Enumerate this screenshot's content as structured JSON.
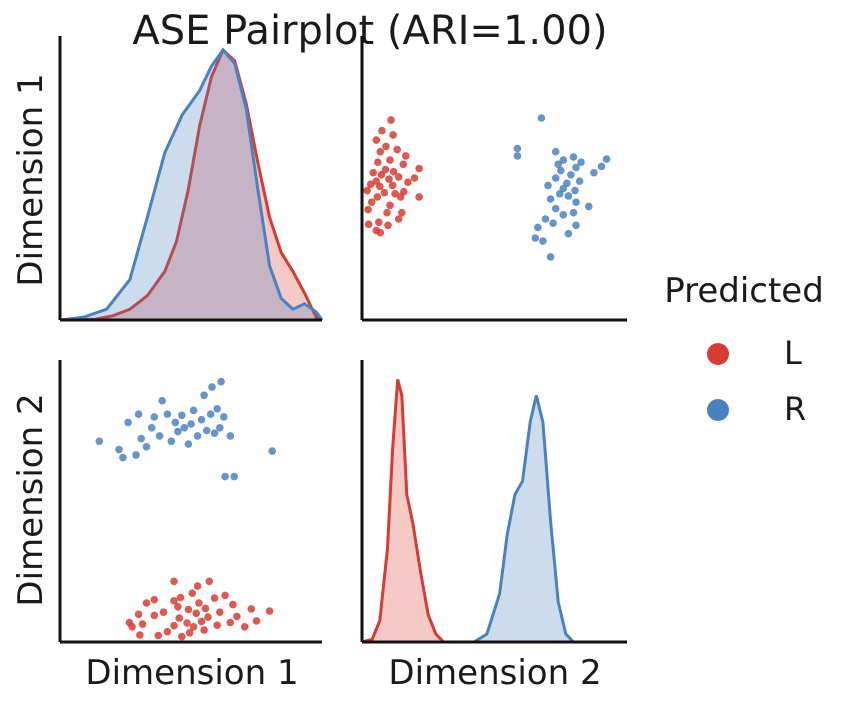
{
  "chart_data": {
    "type": "pairplot",
    "title": "ASE Pairplot (ARI=1.00)",
    "variables": [
      "Dimension 1",
      "Dimension 2"
    ],
    "axes": {
      "Dimension 1": [
        -0.1,
        2.15
      ],
      "Dimension 2": [
        0,
        5.2
      ]
    },
    "grid": false,
    "ticks_shown": false,
    "legend": {
      "title": "Predicted",
      "placement": "right",
      "entries": [
        {
          "label": "L",
          "color": "#d73c32"
        },
        {
          "label": "R",
          "color": "#4a82bf"
        }
      ]
    },
    "series": [
      {
        "name": "L",
        "color": "#d73c32",
        "points": [
          [
            0.73,
            0.36
          ],
          [
            0.75,
            0.28
          ],
          [
            0.8,
            0.51
          ],
          [
            0.81,
            0.13
          ],
          [
            0.83,
            0.33
          ],
          [
            0.86,
            0.72
          ],
          [
            0.92,
            0.78
          ],
          [
            0.92,
            0.49
          ],
          [
            0.95,
            0.12
          ],
          [
            0.99,
            0.55
          ],
          [
            1.02,
            0.19
          ],
          [
            1.07,
            1.12
          ],
          [
            1.07,
            0.76
          ],
          [
            1.07,
            0.3
          ],
          [
            1.1,
            0.65
          ],
          [
            1.11,
            0.44
          ],
          [
            1.12,
            0.82
          ],
          [
            1.13,
            0.1
          ],
          [
            1.17,
            0.35
          ],
          [
            1.18,
            0.6
          ],
          [
            1.19,
            0.17
          ],
          [
            1.21,
            0.9
          ],
          [
            1.22,
            0.28
          ],
          [
            1.24,
            0.53
          ],
          [
            1.25,
            1.03
          ],
          [
            1.26,
            0.72
          ],
          [
            1.28,
            0.38
          ],
          [
            1.3,
            0.22
          ],
          [
            1.31,
            0.62
          ],
          [
            1.33,
            0.46
          ],
          [
            1.34,
            1.12
          ],
          [
            1.38,
            0.81
          ],
          [
            1.4,
            0.31
          ],
          [
            1.42,
            0.55
          ],
          [
            1.46,
            0.86
          ],
          [
            1.5,
            0.36
          ],
          [
            1.52,
            0.69
          ],
          [
            1.55,
            0.47
          ],
          [
            1.61,
            0.28
          ],
          [
            1.66,
            0.61
          ],
          [
            1.7,
            0.39
          ],
          [
            1.8,
            0.57
          ]
        ],
        "kde_dim1": [
          [
            -0.1,
            0.0
          ],
          [
            0.2,
            0.003
          ],
          [
            0.35,
            0.015
          ],
          [
            0.5,
            0.04
          ],
          [
            0.65,
            0.09
          ],
          [
            0.8,
            0.18
          ],
          [
            0.9,
            0.29
          ],
          [
            1.0,
            0.48
          ],
          [
            1.1,
            0.72
          ],
          [
            1.2,
            0.9
          ],
          [
            1.3,
            1.0
          ],
          [
            1.4,
            0.96
          ],
          [
            1.5,
            0.8
          ],
          [
            1.6,
            0.58
          ],
          [
            1.7,
            0.38
          ],
          [
            1.8,
            0.25
          ],
          [
            1.9,
            0.18
          ],
          [
            2.0,
            0.1
          ],
          [
            2.1,
            0.01
          ],
          [
            2.15,
            0.0
          ]
        ],
        "kde_dim2": [
          [
            0,
            0.0
          ],
          [
            0.2,
            0.01
          ],
          [
            0.35,
            0.08
          ],
          [
            0.5,
            0.35
          ],
          [
            0.6,
            0.72
          ],
          [
            0.7,
            0.98
          ],
          [
            0.78,
            0.92
          ],
          [
            0.88,
            0.55
          ],
          [
            1.0,
            0.44
          ],
          [
            1.15,
            0.26
          ],
          [
            1.3,
            0.1
          ],
          [
            1.45,
            0.03
          ],
          [
            1.6,
            0.0
          ],
          [
            5.2,
            0.0
          ]
        ]
      },
      {
        "name": "R",
        "color": "#4a82bf",
        "points": [
          [
            0.5,
            3.7
          ],
          [
            0.65,
            3.55
          ],
          [
            0.68,
            3.4
          ],
          [
            0.72,
            4.05
          ],
          [
            0.78,
            3.45
          ],
          [
            0.8,
            4.2
          ],
          [
            0.82,
            3.75
          ],
          [
            0.86,
            3.6
          ],
          [
            0.9,
            3.95
          ],
          [
            0.92,
            4.15
          ],
          [
            0.96,
            3.8
          ],
          [
            0.98,
            4.45
          ],
          [
            1.02,
            4.2
          ],
          [
            1.05,
            3.7
          ],
          [
            1.08,
            4.05
          ],
          [
            1.1,
            3.88
          ],
          [
            1.13,
            4.18
          ],
          [
            1.15,
            3.95
          ],
          [
            1.18,
            3.65
          ],
          [
            1.2,
            4.02
          ],
          [
            1.22,
            4.27
          ],
          [
            1.25,
            3.8
          ],
          [
            1.28,
            4.1
          ],
          [
            1.3,
            4.55
          ],
          [
            1.32,
            3.9
          ],
          [
            1.35,
            4.2
          ],
          [
            1.36,
            4.7
          ],
          [
            1.38,
            3.85
          ],
          [
            1.4,
            4.3
          ],
          [
            1.42,
            3.95
          ],
          [
            1.43,
            4.8
          ],
          [
            1.45,
            4.15
          ],
          [
            1.46,
            3.05
          ],
          [
            1.5,
            3.8
          ],
          [
            1.53,
            3.05
          ],
          [
            1.82,
            3.52
          ]
        ],
        "kde_dim1": [
          [
            -0.1,
            0.0
          ],
          [
            0.1,
            0.01
          ],
          [
            0.3,
            0.04
          ],
          [
            0.5,
            0.15
          ],
          [
            0.65,
            0.38
          ],
          [
            0.8,
            0.62
          ],
          [
            0.95,
            0.76
          ],
          [
            1.1,
            0.85
          ],
          [
            1.2,
            0.94
          ],
          [
            1.3,
            1.0
          ],
          [
            1.4,
            0.95
          ],
          [
            1.5,
            0.78
          ],
          [
            1.6,
            0.48
          ],
          [
            1.7,
            0.2
          ],
          [
            1.8,
            0.08
          ],
          [
            1.9,
            0.04
          ],
          [
            2.0,
            0.06
          ],
          [
            2.1,
            0.03
          ],
          [
            2.15,
            0.0
          ]
        ],
        "kde_dim2": [
          [
            0,
            0.0
          ],
          [
            2.2,
            0.0
          ],
          [
            2.45,
            0.03
          ],
          [
            2.7,
            0.18
          ],
          [
            2.85,
            0.4
          ],
          [
            3.0,
            0.55
          ],
          [
            3.15,
            0.6
          ],
          [
            3.3,
            0.82
          ],
          [
            3.42,
            0.92
          ],
          [
            3.55,
            0.82
          ],
          [
            3.7,
            0.45
          ],
          [
            3.85,
            0.15
          ],
          [
            4.0,
            0.03
          ],
          [
            4.15,
            0.0
          ],
          [
            5.2,
            0.0
          ]
        ]
      }
    ]
  }
}
